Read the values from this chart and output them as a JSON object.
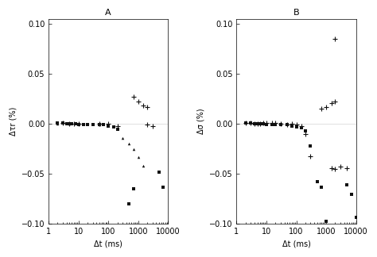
{
  "panel_A": {
    "label": "A",
    "ylabel": "Δτr (%)",
    "xlabel": "Δt (ms)",
    "xlim": [
      1,
      10000
    ],
    "ylim": [
      -0.1,
      0.105
    ],
    "yticks": [
      -0.1,
      -0.05,
      0,
      0.05,
      0.1
    ],
    "xtick_vals": [
      1,
      10,
      100,
      1000,
      10000
    ],
    "xtick_labels": [
      "1",
      "10",
      "100",
      "1000",
      "10000"
    ],
    "data_squares": [
      [
        2,
        0.001
      ],
      [
        3,
        0.001
      ],
      [
        4,
        0.0
      ],
      [
        5,
        0.0
      ],
      [
        6,
        0.0
      ],
      [
        8,
        0.0
      ],
      [
        10,
        -0.001
      ],
      [
        15,
        -0.001
      ],
      [
        20,
        -0.001
      ],
      [
        30,
        -0.001
      ],
      [
        50,
        -0.001
      ],
      [
        70,
        -0.001
      ],
      [
        100,
        -0.002
      ],
      [
        150,
        -0.003
      ],
      [
        200,
        -0.005
      ],
      [
        500,
        -0.08
      ],
      [
        700,
        -0.065
      ],
      [
        5000,
        -0.048
      ],
      [
        7000,
        -0.063
      ]
    ],
    "data_triangles": [
      [
        2,
        0.0
      ],
      [
        5,
        0.0
      ],
      [
        10,
        0.0
      ],
      [
        50,
        -0.001
      ],
      [
        100,
        -0.001
      ],
      [
        300,
        -0.014
      ],
      [
        500,
        -0.02
      ],
      [
        700,
        -0.025
      ],
      [
        1000,
        -0.033
      ],
      [
        1500,
        -0.042
      ]
    ],
    "data_plus": [
      [
        3,
        0.001
      ],
      [
        5,
        0.0
      ],
      [
        7,
        0.0
      ],
      [
        10,
        0.0
      ],
      [
        50,
        0.0
      ],
      [
        100,
        0.0
      ],
      [
        200,
        -0.002
      ],
      [
        700,
        0.027
      ],
      [
        1000,
        0.022
      ],
      [
        1500,
        0.018
      ],
      [
        2000,
        0.017
      ],
      [
        2000,
        -0.001
      ],
      [
        3000,
        -0.002
      ]
    ]
  },
  "panel_B": {
    "label": "B",
    "ylabel": "Δσ (%)",
    "xlabel": "Δt (ms)",
    "xlim": [
      1,
      10000
    ],
    "ylim": [
      -0.1,
      0.105
    ],
    "yticks": [
      -0.1,
      -0.05,
      0,
      0.05,
      0.1
    ],
    "xtick_vals": [
      1,
      10,
      100,
      1000,
      10000
    ],
    "xtick_labels": [
      "1",
      "10",
      "100",
      "1000",
      "10000"
    ],
    "data_squares": [
      [
        2,
        0.001
      ],
      [
        3,
        0.001
      ],
      [
        4,
        0.0
      ],
      [
        5,
        0.0
      ],
      [
        6,
        0.0
      ],
      [
        8,
        0.0
      ],
      [
        10,
        -0.001
      ],
      [
        15,
        -0.001
      ],
      [
        20,
        -0.001
      ],
      [
        30,
        -0.001
      ],
      [
        50,
        -0.001
      ],
      [
        70,
        -0.002
      ],
      [
        100,
        -0.003
      ],
      [
        150,
        -0.004
      ],
      [
        200,
        -0.007
      ],
      [
        300,
        -0.022
      ],
      [
        500,
        -0.058
      ],
      [
        700,
        -0.063
      ],
      [
        1000,
        -0.097
      ],
      [
        5000,
        -0.061
      ],
      [
        7000,
        -0.07
      ],
      [
        10000,
        -0.093
      ]
    ],
    "data_plus": [
      [
        2,
        0.001
      ],
      [
        3,
        0.001
      ],
      [
        4,
        0.0
      ],
      [
        5,
        0.0
      ],
      [
        6,
        0.0
      ],
      [
        8,
        0.001
      ],
      [
        10,
        0.001
      ],
      [
        15,
        0.001
      ],
      [
        20,
        0.001
      ],
      [
        30,
        0.0
      ],
      [
        50,
        -0.001
      ],
      [
        70,
        0.0
      ],
      [
        100,
        -0.001
      ],
      [
        150,
        -0.002
      ],
      [
        200,
        -0.01
      ],
      [
        300,
        -0.032
      ],
      [
        700,
        0.015
      ],
      [
        1000,
        0.017
      ],
      [
        1500,
        0.021
      ],
      [
        2000,
        0.022
      ],
      [
        1500,
        -0.044
      ],
      [
        2000,
        -0.045
      ],
      [
        3000,
        -0.043
      ],
      [
        5000,
        -0.044
      ],
      [
        2000,
        0.085
      ]
    ]
  },
  "marker_color": "#111111",
  "marker_size": 2.5,
  "font_size": 7,
  "label_fontsize": 8
}
